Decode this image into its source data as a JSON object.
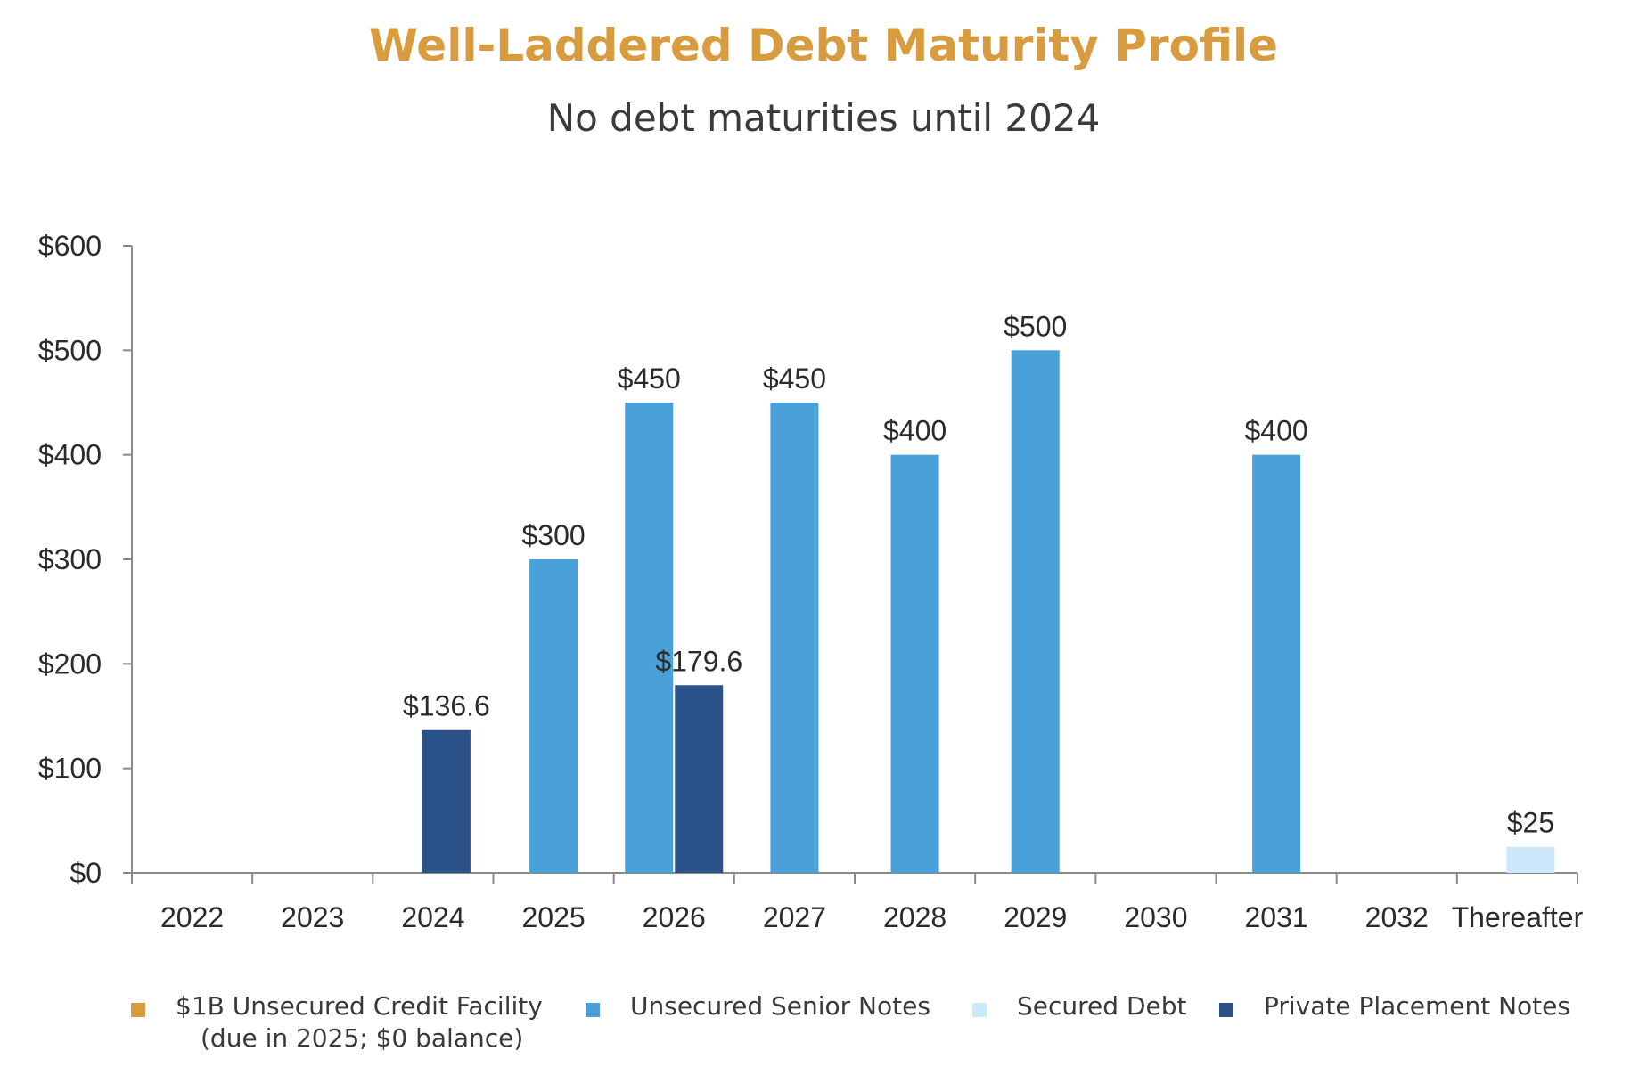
{
  "chart_data": {
    "type": "bar",
    "title": "Well-Laddered Debt Maturity Profile",
    "subtitle": "No debt maturities until 2024",
    "categories": [
      "2022",
      "2023",
      "2024",
      "2025",
      "2026",
      "2027",
      "2028",
      "2029",
      "2030",
      "2031",
      "2032",
      "Thereafter"
    ],
    "ylim": [
      0,
      600
    ],
    "yticks": [
      "$0",
      "$100",
      "$200",
      "$300",
      "$400",
      "$500",
      "$600"
    ],
    "ytick_values": [
      0,
      100,
      200,
      300,
      400,
      500,
      600
    ],
    "grid": false,
    "legend_position": "bottom",
    "series": [
      {
        "name": "$1B Unsecured Credit Facility",
        "name_line2": "(due in 2025; $0 balance)",
        "color": "#D89B3D",
        "values": [
          0,
          0,
          0,
          0,
          0,
          0,
          0,
          0,
          0,
          0,
          0,
          0
        ],
        "labels": [
          "",
          "",
          "",
          "",
          "",
          "",
          "",
          "",
          "",
          "",
          "",
          ""
        ]
      },
      {
        "name": "Unsecured Senior Notes",
        "color": "#4AA0D8",
        "values": [
          0,
          0,
          0,
          300,
          450,
          450,
          400,
          500,
          0,
          400,
          0,
          0
        ],
        "labels": [
          "",
          "",
          "",
          "$300",
          "$450",
          "$450",
          "$400",
          "$500",
          "",
          "$400",
          "",
          ""
        ]
      },
      {
        "name": "Secured Debt",
        "color": "#CCE8FA",
        "values": [
          0,
          0,
          0,
          0,
          0,
          0,
          0,
          0,
          0,
          0,
          0,
          25
        ],
        "labels": [
          "",
          "",
          "",
          "",
          "",
          "",
          "",
          "",
          "",
          "",
          "",
          "$25"
        ]
      },
      {
        "name": "Private Placement Notes",
        "color": "#2B538A",
        "values": [
          0,
          0,
          136.6,
          0,
          179.6,
          0,
          0,
          0,
          0,
          0,
          0,
          0
        ],
        "labels": [
          "",
          "",
          "$136.6",
          "",
          "$179.6",
          "",
          "",
          "",
          "",
          "",
          "",
          ""
        ]
      }
    ]
  }
}
